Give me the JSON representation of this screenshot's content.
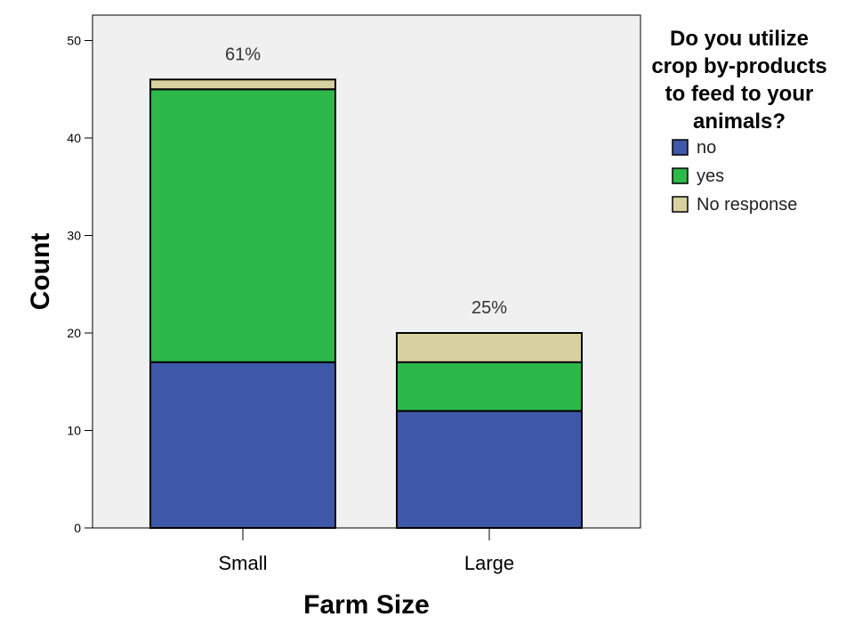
{
  "chart_data": {
    "type": "bar",
    "stacked": true,
    "categories": [
      "Small",
      "Large"
    ],
    "series": [
      {
        "name": "no",
        "values": [
          17,
          12
        ],
        "color": "#3f57a8"
      },
      {
        "name": "yes",
        "values": [
          28,
          5
        ],
        "color": "#2db84a"
      },
      {
        "name": "No response",
        "values": [
          1,
          3
        ],
        "color": "#d7d19f"
      }
    ],
    "annotations": [
      "61%",
      "25%"
    ],
    "xlabel": "Farm Size",
    "ylabel": "Count",
    "ylim": [
      0,
      52
    ],
    "yticks": [
      0,
      10,
      20,
      30,
      40,
      50
    ],
    "legend": {
      "title_lines": [
        "Do you utilize",
        "crop by-products",
        "to feed to your",
        "animals?"
      ],
      "placement": "right"
    },
    "plot_background": "#f0f0f0",
    "grid": false
  }
}
